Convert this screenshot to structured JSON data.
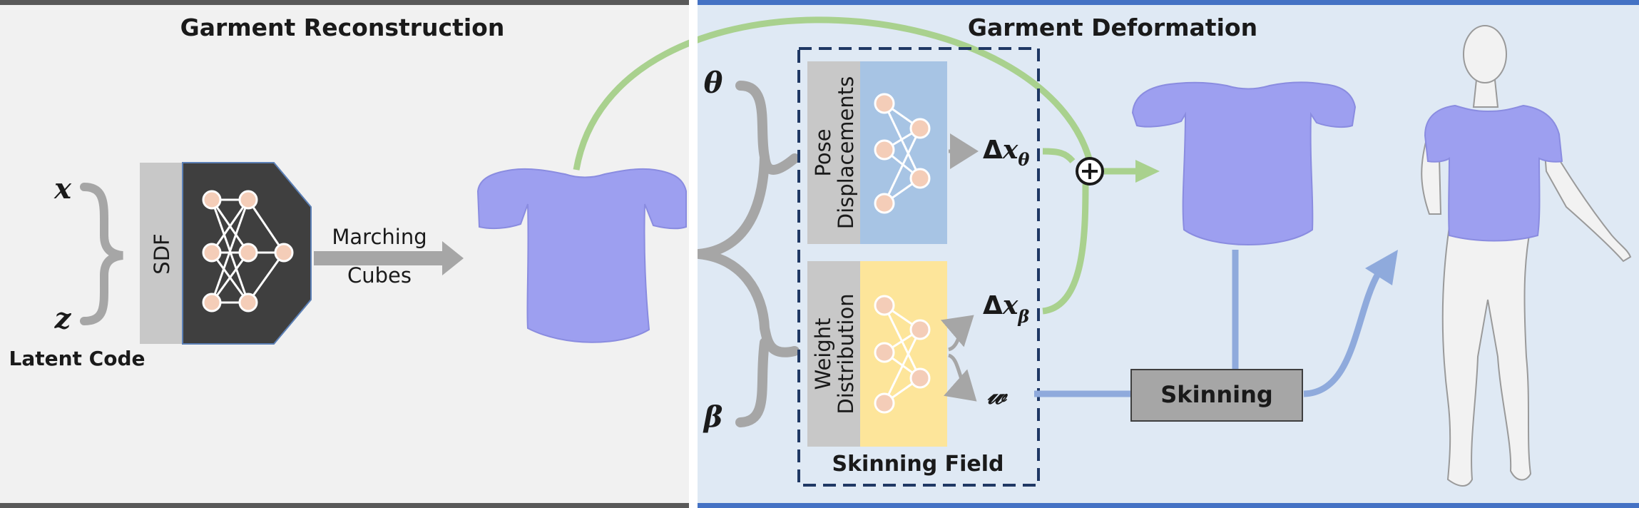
{
  "panels": {
    "reconstruction_title": "Garment Reconstruction",
    "deformation_title": "Garment Deformation"
  },
  "inputs": {
    "x": "x",
    "z": "z",
    "latent_code": "Latent Code",
    "theta": "θ",
    "beta": "β"
  },
  "blocks": {
    "sdf": "SDF",
    "marching_line1": "Marching",
    "marching_line2": "Cubes",
    "pose_line1": "Pose",
    "pose_line2": "Displacements",
    "weight_line1": "Weight",
    "weight_line2": "Distribution",
    "skinning_field": "Skinning Field",
    "skinning": "Skinning"
  },
  "outputs": {
    "delta": "Δ",
    "dx_var": "x",
    "dx_theta_sub": "θ",
    "dx_beta_sub": "β",
    "w": "𝓌",
    "plus": "⊕"
  },
  "colors": {
    "left_bg": "#f1f1f1",
    "right_bg": "#dfe9f4",
    "green_arrow": "#a9d18e",
    "blue_arrow": "#8faadc",
    "gray_arrow": "#a6a6a6",
    "pose_box": "#a7c4e4",
    "weight_box": "#fde59a",
    "garment": "#9d9ff0",
    "dashed_border": "#1f3864"
  }
}
